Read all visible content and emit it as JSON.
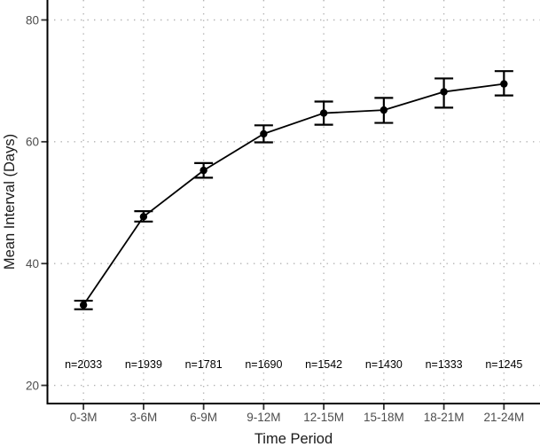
{
  "chart_data": {
    "type": "line",
    "title": "",
    "xlabel": "Time Period",
    "ylabel": "Mean Interval (Days)",
    "categories": [
      "0-3M",
      "3-6M",
      "6-9M",
      "9-12M",
      "12-15M",
      "15-18M",
      "18-21M",
      "21-24M"
    ],
    "series": [
      {
        "name": "mean-interval-days",
        "values": [
          33.2,
          47.7,
          55.3,
          61.3,
          64.7,
          65.2,
          68.2,
          69.5
        ],
        "error_low": [
          32.5,
          46.9,
          54.1,
          59.9,
          62.8,
          63.1,
          65.6,
          67.6
        ],
        "error_high": [
          33.9,
          48.6,
          56.5,
          62.7,
          66.6,
          67.2,
          70.4,
          71.6
        ]
      }
    ],
    "sample_size_labels": [
      "n=2033",
      "n=1939",
      "n=1781",
      "n=1690",
      "n=1542",
      "n=1430",
      "n=1333",
      "n=1245"
    ],
    "sample_size_label_y_value": 21.8,
    "yticks": [
      20,
      40,
      60,
      80
    ],
    "ylim": [
      16.8,
      83.3
    ],
    "grid": {
      "style": "dotted",
      "major_x": true,
      "major_y": true,
      "minor": false
    },
    "legend": "none",
    "colors": {
      "line": "#000000",
      "point": "#000000",
      "error_bar": "#000000",
      "grid": "#b3b3b3",
      "axis_line": "#000000",
      "tick_mark": "#333333",
      "tick_label": "#4d4d4d",
      "axis_title": "#1a1a1a",
      "sample_label": "#000000",
      "background": "#ffffff"
    }
  }
}
